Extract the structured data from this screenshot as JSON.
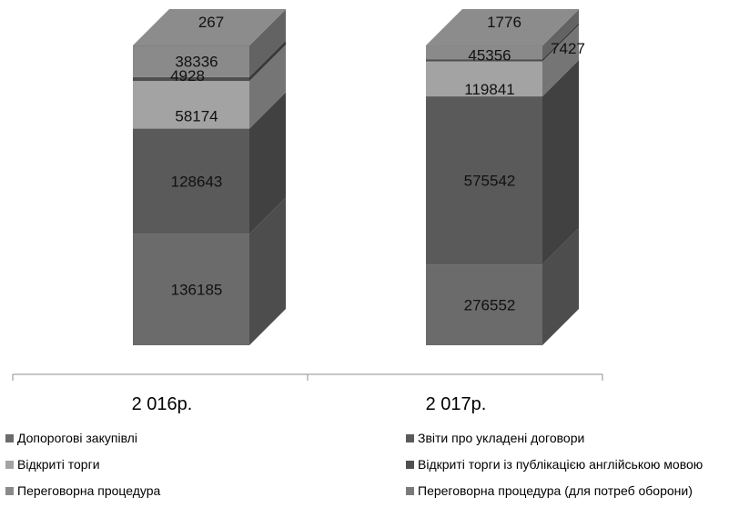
{
  "chart_data": {
    "type": "bar",
    "stacked": true,
    "three_d": true,
    "categories": [
      "2 016р.",
      "2 017р."
    ],
    "series": [
      {
        "name": "Допорогові закупівлі",
        "values": [
          136185,
          276552
        ],
        "color": "#6b6b6b"
      },
      {
        "name": "Звіти про укладені договори",
        "values": [
          128643,
          575542
        ],
        "color": "#5a5a5a"
      },
      {
        "name": "Відкриті торги",
        "values": [
          58174,
          119841
        ],
        "color": "#a3a3a3"
      },
      {
        "name": "Відкриті торги із публікацією англійською мовою",
        "values": [
          4928,
          7427
        ],
        "color": "#4f4f4f"
      },
      {
        "name": "Переговорна процедура",
        "values": [
          38336,
          45356
        ],
        "color": "#8a8a8a"
      },
      {
        "name": "Переговорна процедура (для потреб оборони)",
        "values": [
          267,
          1776
        ],
        "color": "#7a7a7a"
      }
    ],
    "value_labels": [
      [
        "136185",
        "128643",
        "58174",
        "4928",
        "38336",
        "267"
      ],
      [
        "276552",
        "575542",
        "119841",
        "7427",
        "45356",
        "1776"
      ]
    ],
    "legend_position": "bottom",
    "grid": false
  }
}
